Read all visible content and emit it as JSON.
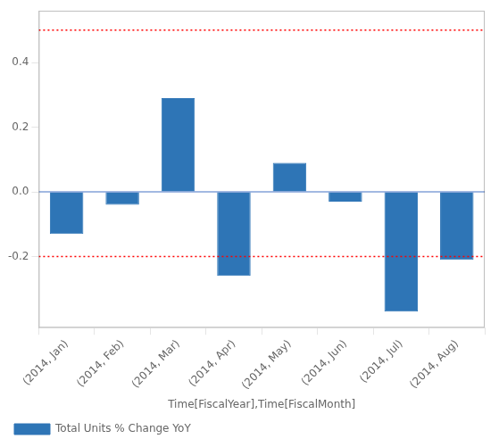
{
  "chart_data": {
    "type": "bar",
    "xlabel": "Time[FiscalYear],Time[FiscalMonth]",
    "categories": [
      "(2014, Jan)",
      "(2014, Feb)",
      "(2014, Mar)",
      "(2014, Apr)",
      "(2014, May)",
      "(2014, Jun)",
      "(2014, Jul)",
      "(2014, Aug)"
    ],
    "series": [
      {
        "name": "Total Units % Change YoY",
        "color": "#2e75b6",
        "values": [
          -0.13,
          -0.04,
          0.29,
          -0.26,
          0.09,
          -0.03,
          -0.37,
          -0.21
        ]
      }
    ],
    "hlines": [
      {
        "y": 0.5,
        "color": "red",
        "line_style": "dotted"
      },
      {
        "y": -0.2,
        "color": "red",
        "line_style": "dotted"
      },
      {
        "y": 0,
        "color": "#4472c4",
        "line_style": "solid"
      }
    ],
    "ylim": [
      -0.42,
      0.56
    ],
    "yticks": [
      -0.2,
      {
        "value": 0,
        "label": "0.0"
      },
      0.2,
      0.4
    ],
    "grid": false,
    "legend": "lower left"
  }
}
